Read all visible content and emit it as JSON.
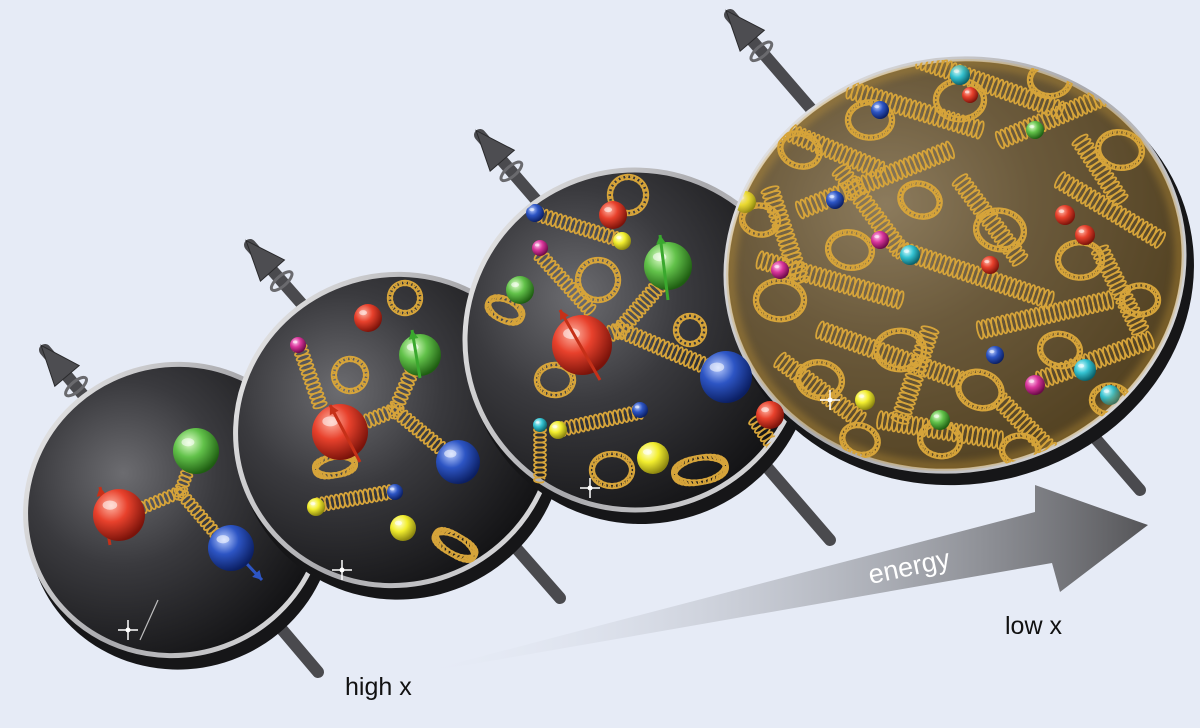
{
  "labels": {
    "energy": "energy",
    "high_x": "high x",
    "low_x": "low x"
  },
  "colors": {
    "background": "#e6ebf6",
    "gluon": "#d6a43a",
    "quark_red": "#e8412c",
    "quark_green": "#62c24a",
    "quark_blue": "#2d55c4",
    "antiquark_yellow": "#f2ee2e",
    "antiquark_magenta": "#d9359b",
    "antiquark_cyan": "#35c3d2",
    "proton_disk": "#2c2c30",
    "arrow": "#5b5b5f"
  },
  "icons": {
    "spin_arrow": "spin-axis-arrow-icon",
    "quark": "sphere-icon",
    "gluon": "spring-coil-icon"
  }
}
